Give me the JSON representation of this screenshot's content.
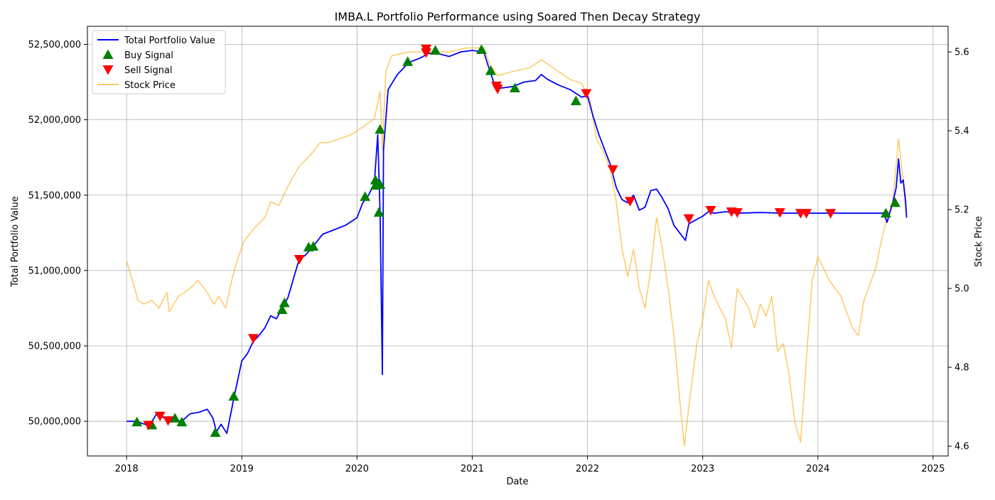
{
  "chart_data": {
    "type": "line",
    "title": "IMBA.L Portfolio Performance using Soared Then Decay Strategy",
    "xlabel": "Date",
    "ylabel": "Total Portfolio Value",
    "y2label": "Stock Price",
    "x_ticks": [
      "2018",
      "2019",
      "2020",
      "2021",
      "2022",
      "2023",
      "2024",
      "2025"
    ],
    "y_ticks": [
      "50,000,000",
      "50,500,000",
      "51,000,000",
      "51,500,000",
      "52,000,000",
      "52,500,000"
    ],
    "y2_ticks": [
      "4.6",
      "4.8",
      "5.0",
      "5.2",
      "5.4",
      "5.6"
    ],
    "xlim": [
      2017.66,
      2025.13
    ],
    "ylim": [
      49770000,
      52620000
    ],
    "y2lim": [
      4.575,
      5.665
    ],
    "grid": true,
    "legend_position": "top-left",
    "legend": [
      {
        "label": "Total Portfolio Value",
        "kind": "line",
        "color": "#0000ff"
      },
      {
        "label": "Buy Signal",
        "kind": "triangle-up",
        "color": "#008000"
      },
      {
        "label": "Sell Signal",
        "kind": "triangle-down",
        "color": "#ff0000"
      },
      {
        "label": "Stock Price",
        "kind": "line",
        "color": "#ffa500"
      }
    ],
    "colors": {
      "portfolio": "#0000ff",
      "buy": "#008000",
      "sell": "#ff0000",
      "price": "#ffa500"
    },
    "series": [
      {
        "name": "Total Portfolio Value",
        "axis": "left",
        "points": [
          [
            2018.0,
            50000000
          ],
          [
            2018.08,
            50000000
          ],
          [
            2018.12,
            49990000
          ],
          [
            2018.2,
            49970000
          ],
          [
            2018.26,
            50050000
          ],
          [
            2018.33,
            50020000
          ],
          [
            2018.4,
            50010000
          ],
          [
            2018.48,
            50000000
          ],
          [
            2018.55,
            50050000
          ],
          [
            2018.63,
            50060000
          ],
          [
            2018.7,
            50080000
          ],
          [
            2018.75,
            50020000
          ],
          [
            2018.78,
            49930000
          ],
          [
            2018.82,
            49980000
          ],
          [
            2018.87,
            49920000
          ],
          [
            2018.93,
            50150000
          ],
          [
            2019.0,
            50400000
          ],
          [
            2019.05,
            50450000
          ],
          [
            2019.1,
            50530000
          ],
          [
            2019.15,
            50570000
          ],
          [
            2019.2,
            50620000
          ],
          [
            2019.25,
            50700000
          ],
          [
            2019.3,
            50680000
          ],
          [
            2019.35,
            50750000
          ],
          [
            2019.4,
            50820000
          ],
          [
            2019.45,
            50950000
          ],
          [
            2019.5,
            51080000
          ],
          [
            2019.55,
            51100000
          ],
          [
            2019.62,
            51160000
          ],
          [
            2019.7,
            51240000
          ],
          [
            2019.8,
            51270000
          ],
          [
            2019.9,
            51300000
          ],
          [
            2020.0,
            51350000
          ],
          [
            2020.05,
            51450000
          ],
          [
            2020.1,
            51500000
          ],
          [
            2020.15,
            51580000
          ],
          [
            2020.18,
            51900000
          ],
          [
            2020.2,
            51380000
          ],
          [
            2020.22,
            50310000
          ],
          [
            2020.23,
            51800000
          ],
          [
            2020.27,
            52200000
          ],
          [
            2020.35,
            52300000
          ],
          [
            2020.45,
            52380000
          ],
          [
            2020.55,
            52410000
          ],
          [
            2020.62,
            52440000
          ],
          [
            2020.7,
            52440000
          ],
          [
            2020.8,
            52420000
          ],
          [
            2020.9,
            52450000
          ],
          [
            2021.0,
            52460000
          ],
          [
            2021.1,
            52450000
          ],
          [
            2021.15,
            52330000
          ],
          [
            2021.2,
            52220000
          ],
          [
            2021.25,
            52210000
          ],
          [
            2021.35,
            52220000
          ],
          [
            2021.45,
            52250000
          ],
          [
            2021.55,
            52260000
          ],
          [
            2021.6,
            52300000
          ],
          [
            2021.65,
            52270000
          ],
          [
            2021.75,
            52230000
          ],
          [
            2021.85,
            52200000
          ],
          [
            2021.95,
            52150000
          ],
          [
            2022.0,
            52160000
          ],
          [
            2022.05,
            52020000
          ],
          [
            2022.1,
            51900000
          ],
          [
            2022.2,
            51700000
          ],
          [
            2022.25,
            51550000
          ],
          [
            2022.3,
            51470000
          ],
          [
            2022.35,
            51450000
          ],
          [
            2022.4,
            51500000
          ],
          [
            2022.45,
            51400000
          ],
          [
            2022.5,
            51420000
          ],
          [
            2022.55,
            51530000
          ],
          [
            2022.6,
            51540000
          ],
          [
            2022.65,
            51480000
          ],
          [
            2022.7,
            51410000
          ],
          [
            2022.75,
            51300000
          ],
          [
            2022.8,
            51250000
          ],
          [
            2022.85,
            51200000
          ],
          [
            2022.88,
            51310000
          ],
          [
            2022.95,
            51340000
          ],
          [
            2023.0,
            51360000
          ],
          [
            2023.05,
            51390000
          ],
          [
            2023.1,
            51380000
          ],
          [
            2023.2,
            51390000
          ],
          [
            2023.3,
            51380000
          ],
          [
            2023.5,
            51385000
          ],
          [
            2023.7,
            51380000
          ],
          [
            2023.9,
            51380000
          ],
          [
            2024.0,
            51380000
          ],
          [
            2024.2,
            51380000
          ],
          [
            2024.4,
            51380000
          ],
          [
            2024.57,
            51380000
          ],
          [
            2024.6,
            51320000
          ],
          [
            2024.65,
            51450000
          ],
          [
            2024.68,
            51550000
          ],
          [
            2024.7,
            51740000
          ],
          [
            2024.72,
            51580000
          ],
          [
            2024.74,
            51600000
          ],
          [
            2024.76,
            51460000
          ],
          [
            2024.77,
            51350000
          ]
        ]
      },
      {
        "name": "Stock Price",
        "axis": "right",
        "points": [
          [
            2018.0,
            5.07
          ],
          [
            2018.05,
            5.02
          ],
          [
            2018.1,
            4.97
          ],
          [
            2018.15,
            4.96
          ],
          [
            2018.22,
            4.97
          ],
          [
            2018.28,
            4.95
          ],
          [
            2018.35,
            4.99
          ],
          [
            2018.37,
            4.94
          ],
          [
            2018.45,
            4.98
          ],
          [
            2018.55,
            5.0
          ],
          [
            2018.62,
            5.02
          ],
          [
            2018.7,
            4.99
          ],
          [
            2018.76,
            4.96
          ],
          [
            2018.8,
            4.98
          ],
          [
            2018.86,
            4.95
          ],
          [
            2018.92,
            5.03
          ],
          [
            2018.97,
            5.08
          ],
          [
            2019.02,
            5.12
          ],
          [
            2019.1,
            5.15
          ],
          [
            2019.2,
            5.18
          ],
          [
            2019.25,
            5.22
          ],
          [
            2019.32,
            5.21
          ],
          [
            2019.42,
            5.27
          ],
          [
            2019.5,
            5.31
          ],
          [
            2019.6,
            5.34
          ],
          [
            2019.68,
            5.37
          ],
          [
            2019.75,
            5.37
          ],
          [
            2019.85,
            5.38
          ],
          [
            2019.95,
            5.39
          ],
          [
            2020.05,
            5.41
          ],
          [
            2020.15,
            5.43
          ],
          [
            2020.2,
            5.5
          ],
          [
            2020.22,
            5.35
          ],
          [
            2020.25,
            5.55
          ],
          [
            2020.3,
            5.59
          ],
          [
            2020.45,
            5.6
          ],
          [
            2020.6,
            5.6
          ],
          [
            2020.8,
            5.6
          ],
          [
            2020.95,
            5.61
          ],
          [
            2021.1,
            5.61
          ],
          [
            2021.15,
            5.57
          ],
          [
            2021.22,
            5.54
          ],
          [
            2021.35,
            5.55
          ],
          [
            2021.5,
            5.56
          ],
          [
            2021.6,
            5.58
          ],
          [
            2021.7,
            5.56
          ],
          [
            2021.85,
            5.53
          ],
          [
            2021.95,
            5.52
          ],
          [
            2022.02,
            5.48
          ],
          [
            2022.08,
            5.38
          ],
          [
            2022.15,
            5.34
          ],
          [
            2022.2,
            5.3
          ],
          [
            2022.25,
            5.22
          ],
          [
            2022.3,
            5.1
          ],
          [
            2022.35,
            5.03
          ],
          [
            2022.4,
            5.1
          ],
          [
            2022.45,
            5.0
          ],
          [
            2022.5,
            4.95
          ],
          [
            2022.55,
            5.05
          ],
          [
            2022.6,
            5.18
          ],
          [
            2022.65,
            5.1
          ],
          [
            2022.7,
            5.0
          ],
          [
            2022.75,
            4.88
          ],
          [
            2022.8,
            4.72
          ],
          [
            2022.84,
            4.6
          ],
          [
            2022.88,
            4.7
          ],
          [
            2022.95,
            4.86
          ],
          [
            2023.0,
            4.92
          ],
          [
            2023.05,
            5.02
          ],
          [
            2023.1,
            4.98
          ],
          [
            2023.2,
            4.92
          ],
          [
            2023.25,
            4.85
          ],
          [
            2023.3,
            5.0
          ],
          [
            2023.4,
            4.95
          ],
          [
            2023.45,
            4.9
          ],
          [
            2023.5,
            4.96
          ],
          [
            2023.55,
            4.93
          ],
          [
            2023.6,
            4.98
          ],
          [
            2023.65,
            4.84
          ],
          [
            2023.7,
            4.86
          ],
          [
            2023.75,
            4.78
          ],
          [
            2023.8,
            4.66
          ],
          [
            2023.85,
            4.61
          ],
          [
            2023.9,
            4.82
          ],
          [
            2023.95,
            5.02
          ],
          [
            2024.0,
            5.08
          ],
          [
            2024.1,
            5.02
          ],
          [
            2024.2,
            4.98
          ],
          [
            2024.3,
            4.9
          ],
          [
            2024.35,
            4.88
          ],
          [
            2024.4,
            4.97
          ],
          [
            2024.5,
            5.05
          ],
          [
            2024.55,
            5.12
          ],
          [
            2024.6,
            5.18
          ],
          [
            2024.65,
            5.22
          ],
          [
            2024.7,
            5.38
          ],
          [
            2024.73,
            5.3
          ],
          [
            2024.76,
            5.24
          ],
          [
            2024.77,
            5.2
          ]
        ]
      }
    ],
    "buy_signals": [
      [
        2018.09,
        49995000
      ],
      [
        2018.22,
        49975000
      ],
      [
        2018.42,
        50020000
      ],
      [
        2018.48,
        49995000
      ],
      [
        2018.77,
        49925000
      ],
      [
        2018.93,
        50165000
      ],
      [
        2019.35,
        50740000
      ],
      [
        2019.37,
        50785000
      ],
      [
        2019.58,
        51155000
      ],
      [
        2019.62,
        51160000
      ],
      [
        2020.07,
        51490000
      ],
      [
        2020.16,
        51600000
      ],
      [
        2020.16,
        51565000
      ],
      [
        2020.19,
        51385000
      ],
      [
        2020.2,
        51570000
      ],
      [
        2020.2,
        51935000
      ],
      [
        2020.44,
        52385000
      ],
      [
        2020.68,
        52460000
      ],
      [
        2021.08,
        52465000
      ],
      [
        2021.16,
        52325000
      ],
      [
        2021.37,
        52210000
      ],
      [
        2021.9,
        52125000
      ],
      [
        2024.59,
        51380000
      ],
      [
        2024.67,
        51450000
      ]
    ],
    "sell_signals": [
      [
        2018.19,
        49975000
      ],
      [
        2018.29,
        50035000
      ],
      [
        2018.36,
        50005000
      ],
      [
        2019.1,
        50550000
      ],
      [
        2019.5,
        51075000
      ],
      [
        2020.6,
        52445000
      ],
      [
        2020.6,
        52470000
      ],
      [
        2021.21,
        52225000
      ],
      [
        2021.22,
        52205000
      ],
      [
        2021.99,
        52175000
      ],
      [
        2022.22,
        51670000
      ],
      [
        2022.37,
        51460000
      ],
      [
        2022.88,
        51345000
      ],
      [
        2023.07,
        51400000
      ],
      [
        2023.25,
        51390000
      ],
      [
        2023.3,
        51385000
      ],
      [
        2023.67,
        51385000
      ],
      [
        2023.85,
        51380000
      ],
      [
        2023.9,
        51380000
      ],
      [
        2024.11,
        51380000
      ]
    ]
  }
}
